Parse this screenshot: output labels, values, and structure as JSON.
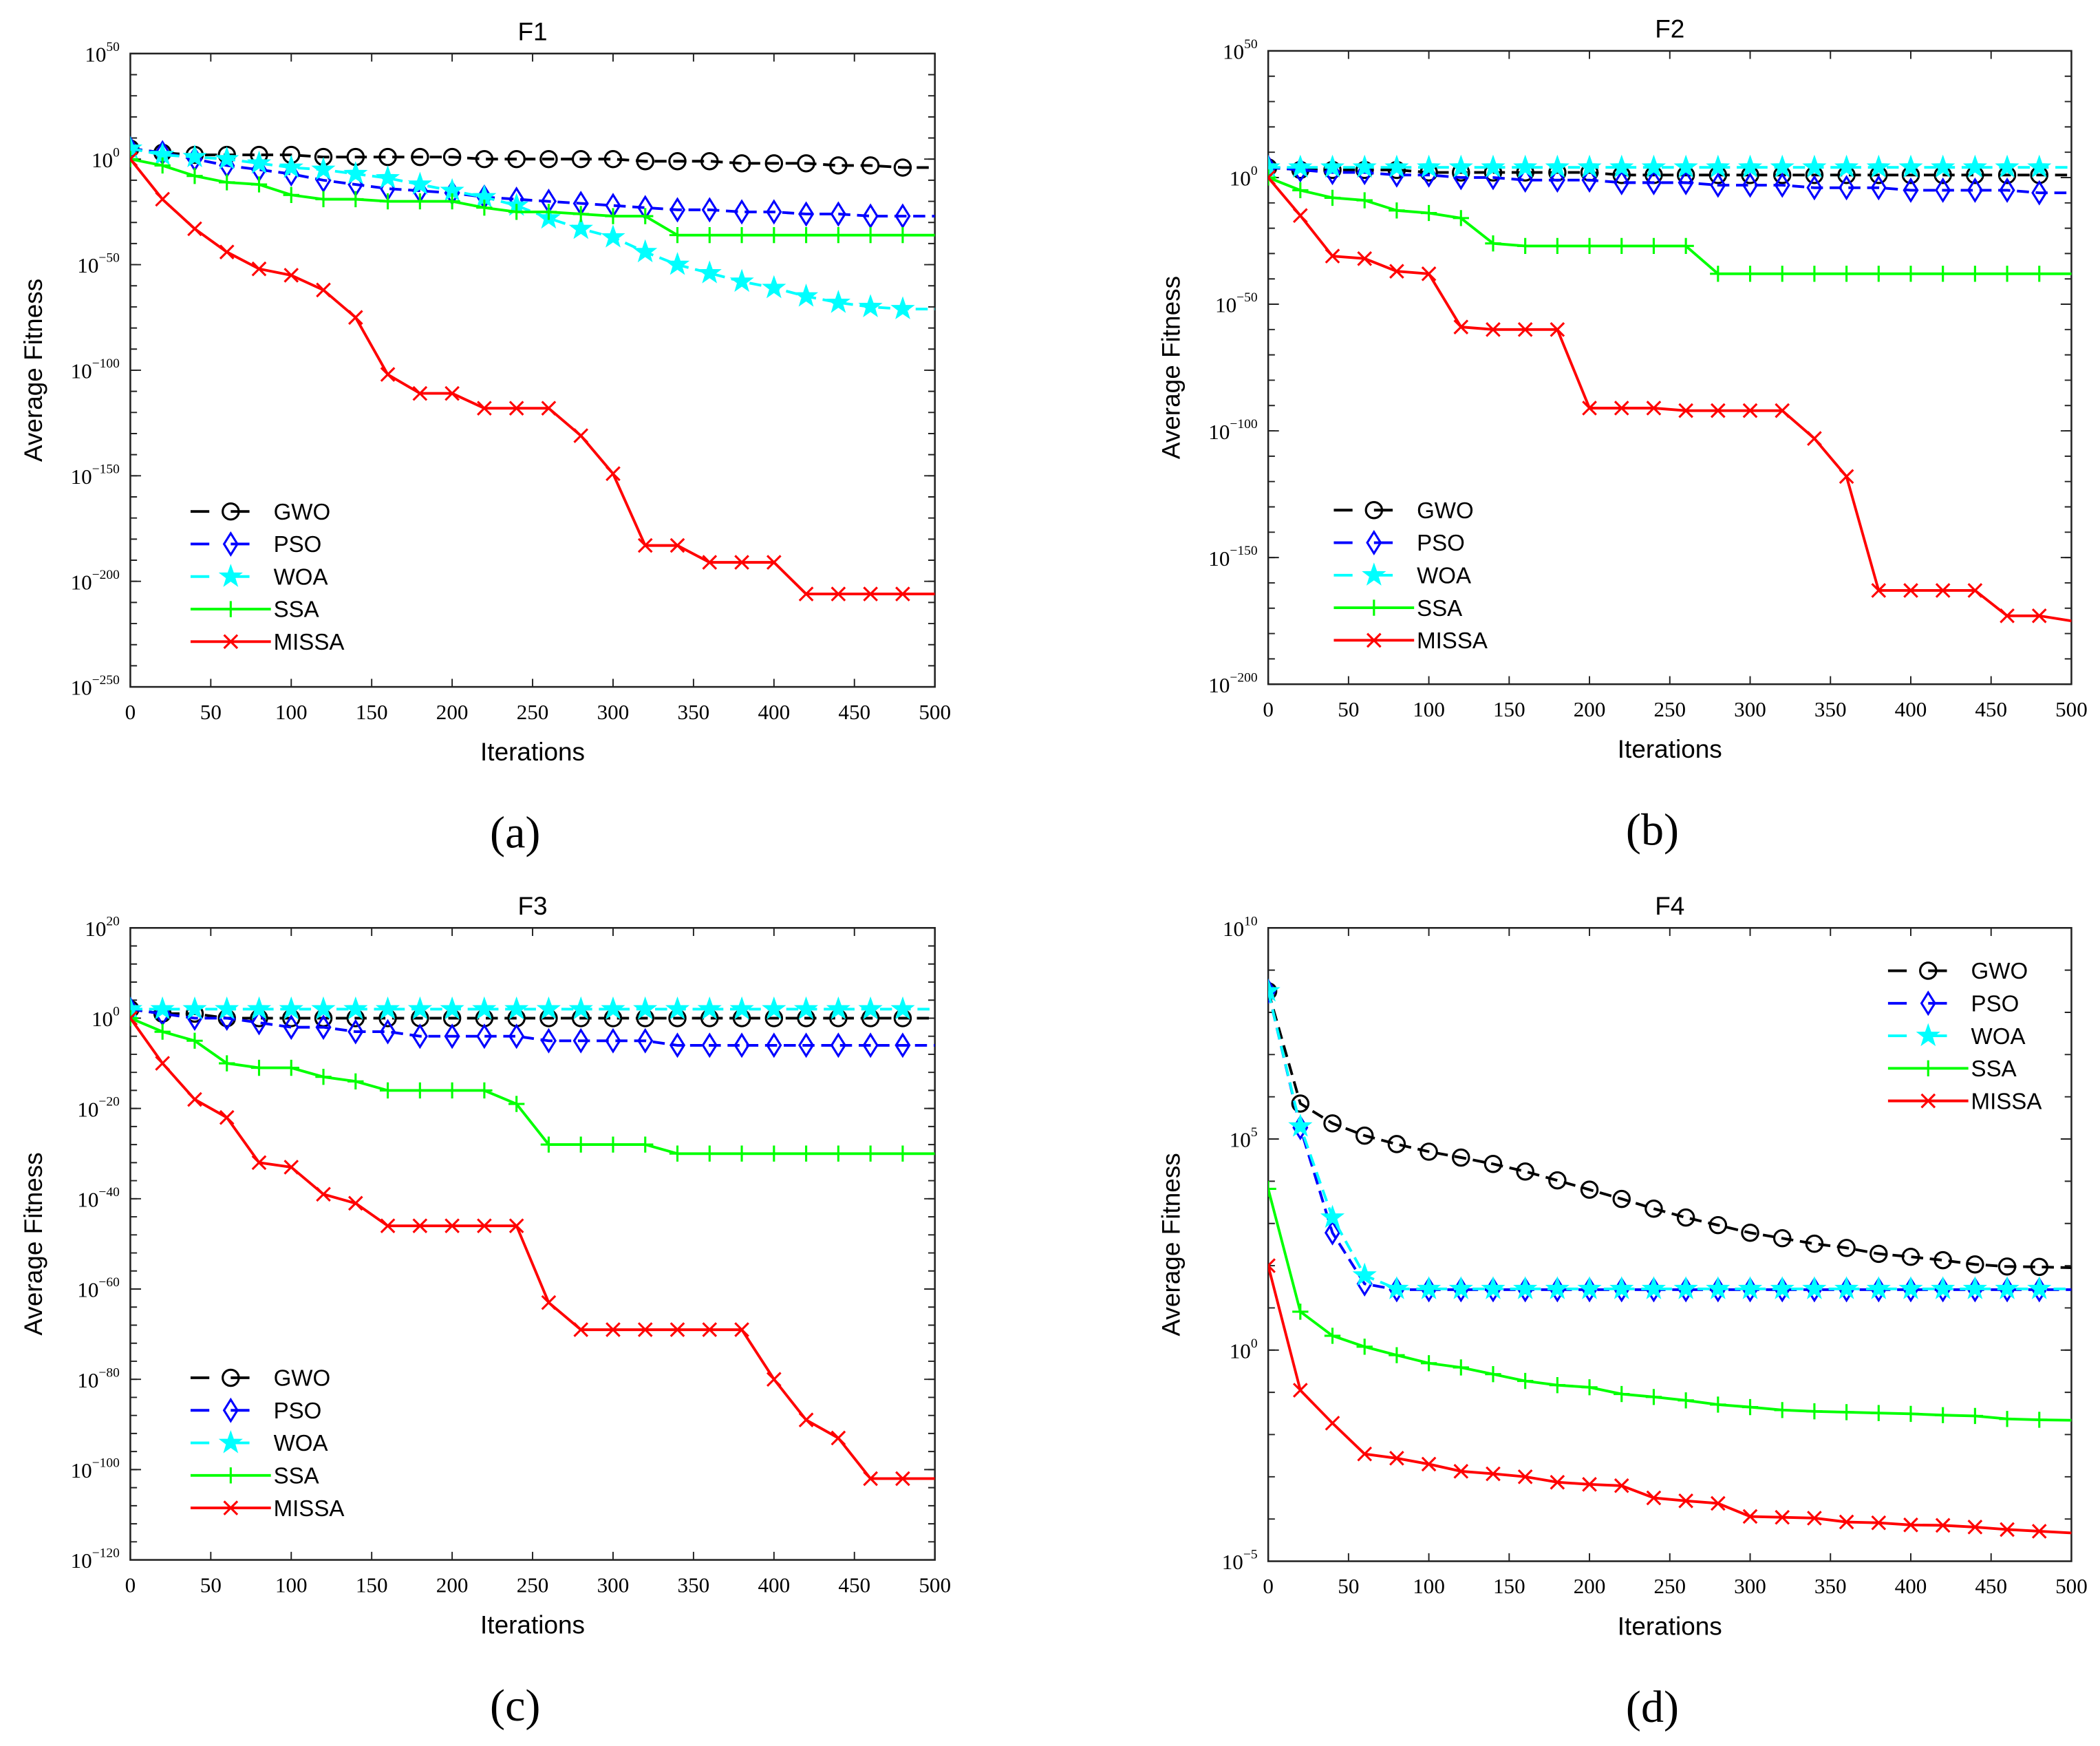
{
  "chart_data": [
    {
      "type": "line",
      "panel_caption": "(a)",
      "title": "F1",
      "xlabel": "Iterations",
      "ylabel": "Average Fitness",
      "yscale": "log10",
      "xlim": [
        0,
        500
      ],
      "ylim_exponent": [
        -250,
        50
      ],
      "x_ticks": [
        "0",
        "50",
        "100",
        "150",
        "200",
        "250",
        "300",
        "350",
        "400",
        "450",
        "500"
      ],
      "y_tick_exponents": [
        "50",
        "0",
        "−50",
        "−100",
        "−150",
        "−200",
        "−250"
      ],
      "legend_position": "lower-left",
      "x": [
        0,
        20,
        40,
        60,
        80,
        100,
        120,
        140,
        160,
        180,
        200,
        220,
        240,
        260,
        280,
        300,
        320,
        340,
        360,
        380,
        400,
        420,
        440,
        460,
        480,
        500
      ],
      "series_log10": [
        {
          "name": "GWO",
          "values": [
            5,
            3,
            2,
            2,
            2,
            2,
            1,
            1,
            1,
            1,
            1,
            0,
            0,
            0,
            0,
            0,
            -1,
            -1,
            -1,
            -2,
            -2,
            -2,
            -3,
            -3,
            -4,
            -4
          ]
        },
        {
          "name": "PSO",
          "values": [
            5,
            3,
            0,
            -3,
            -5,
            -7,
            -10,
            -12,
            -14,
            -15,
            -16,
            -18,
            -19,
            -20,
            -21,
            -22,
            -23,
            -24,
            -24,
            -25,
            -25,
            -26,
            -26,
            -27,
            -27,
            -27
          ]
        },
        {
          "name": "WOA",
          "values": [
            5,
            2,
            1,
            0,
            -2,
            -4,
            -5,
            -7,
            -9,
            -12,
            -15,
            -18,
            -22,
            -28,
            -33,
            -37,
            -44,
            -50,
            -54,
            -58,
            -61,
            -65,
            -68,
            -70,
            -71,
            -71
          ]
        },
        {
          "name": "SSA",
          "values": [
            0,
            -3,
            -8,
            -11,
            -12,
            -17,
            -19,
            -19,
            -20,
            -20,
            -20,
            -23,
            -25,
            -25,
            -26,
            -27,
            -27,
            -36,
            -36,
            -36,
            -36,
            -36,
            -36,
            -36,
            -36,
            -36
          ]
        },
        {
          "name": "MISSA",
          "values": [
            0,
            -19,
            -33,
            -44,
            -52,
            -55,
            -62,
            -75,
            -102,
            -111,
            -111,
            -118,
            -118,
            -118,
            -131,
            -149,
            -183,
            -183,
            -191,
            -191,
            -191,
            -206,
            -206,
            -206,
            -206,
            -206
          ]
        }
      ]
    },
    {
      "type": "line",
      "panel_caption": "(b)",
      "title": "F2",
      "xlabel": "Iterations",
      "ylabel": "Average Fitness",
      "yscale": "log10",
      "xlim": [
        0,
        500
      ],
      "ylim_exponent": [
        -200,
        50
      ],
      "x_ticks": [
        "0",
        "50",
        "100",
        "150",
        "200",
        "250",
        "300",
        "350",
        "400",
        "450",
        "500"
      ],
      "y_tick_exponents": [
        "50",
        "0",
        "−50",
        "−100",
        "−150",
        "−200"
      ],
      "legend_position": "lower-left",
      "x": [
        0,
        20,
        40,
        60,
        80,
        100,
        120,
        140,
        160,
        180,
        200,
        220,
        240,
        260,
        280,
        300,
        320,
        340,
        360,
        380,
        400,
        420,
        440,
        460,
        480,
        500
      ],
      "series_log10": [
        {
          "name": "GWO",
          "values": [
            4,
            3,
            3,
            3,
            3,
            2,
            2,
            2,
            2,
            2,
            2,
            1,
            1,
            1,
            1,
            1,
            1,
            1,
            1,
            1,
            1,
            1,
            1,
            1,
            1,
            1
          ]
        },
        {
          "name": "PSO",
          "values": [
            4,
            3,
            2,
            2,
            1,
            1,
            0,
            0,
            -1,
            -1,
            -1,
            -2,
            -2,
            -2,
            -3,
            -3,
            -3,
            -4,
            -4,
            -4,
            -5,
            -5,
            -5,
            -5,
            -6,
            -6
          ]
        },
        {
          "name": "WOA",
          "values": [
            4,
            4,
            4,
            4,
            4,
            4,
            4,
            4,
            4,
            4,
            4,
            4,
            4,
            4,
            4,
            4,
            4,
            4,
            4,
            4,
            4,
            4,
            4,
            4,
            4,
            4
          ]
        },
        {
          "name": "SSA",
          "values": [
            0,
            -5,
            -8,
            -9,
            -13,
            -14,
            -16,
            -26,
            -27,
            -27,
            -27,
            -27,
            -27,
            -27,
            -38,
            -38,
            -38,
            -38,
            -38,
            -38,
            -38,
            -38,
            -38,
            -38,
            -38,
            -38
          ]
        },
        {
          "name": "MISSA",
          "values": [
            0,
            -15,
            -31,
            -32,
            -37,
            -38,
            -59,
            -60,
            -60,
            -60,
            -91,
            -91,
            -91,
            -92,
            -92,
            -92,
            -92,
            -103,
            -118,
            -163,
            -163,
            -163,
            -163,
            -173,
            -173,
            -175
          ]
        }
      ]
    },
    {
      "type": "line",
      "panel_caption": "(c)",
      "title": "F3",
      "xlabel": "Iterations",
      "ylabel": "Average Fitness",
      "yscale": "log10",
      "xlim": [
        0,
        500
      ],
      "ylim_exponent": [
        -120,
        20
      ],
      "x_ticks": [
        "0",
        "50",
        "100",
        "150",
        "200",
        "250",
        "300",
        "350",
        "400",
        "450",
        "500"
      ],
      "y_tick_exponents": [
        "20",
        "0",
        "−20",
        "−40",
        "−60",
        "−80",
        "−100",
        "−120"
      ],
      "legend_position": "lower-left",
      "x": [
        0,
        20,
        40,
        60,
        80,
        100,
        120,
        140,
        160,
        180,
        200,
        220,
        240,
        260,
        280,
        300,
        320,
        340,
        360,
        380,
        400,
        420,
        440,
        460,
        480,
        500
      ],
      "series_log10": [
        {
          "name": "GWO",
          "values": [
            2,
            1,
            1,
            0,
            0,
            0,
            0,
            0,
            0,
            0,
            0,
            0,
            0,
            0,
            0,
            0,
            0,
            0,
            0,
            0,
            0,
            0,
            0,
            0,
            0,
            0
          ]
        },
        {
          "name": "PSO",
          "values": [
            2,
            1,
            0,
            0,
            -1,
            -2,
            -2,
            -3,
            -3,
            -4,
            -4,
            -4,
            -4,
            -5,
            -5,
            -5,
            -5,
            -6,
            -6,
            -6,
            -6,
            -6,
            -6,
            -6,
            -6,
            -6
          ]
        },
        {
          "name": "WOA",
          "values": [
            2,
            2,
            2,
            2,
            2,
            2,
            2,
            2,
            2,
            2,
            2,
            2,
            2,
            2,
            2,
            2,
            2,
            2,
            2,
            2,
            2,
            2,
            2,
            2,
            2,
            2
          ]
        },
        {
          "name": "SSA",
          "values": [
            0,
            -3,
            -5,
            -10,
            -11,
            -11,
            -13,
            -14,
            -16,
            -16,
            -16,
            -16,
            -19,
            -28,
            -28,
            -28,
            -28,
            -30,
            -30,
            -30,
            -30,
            -30,
            -30,
            -30,
            -30,
            -30
          ]
        },
        {
          "name": "MISSA",
          "values": [
            0,
            -10,
            -18,
            -22,
            -32,
            -33,
            -39,
            -41,
            -46,
            -46,
            -46,
            -46,
            -46,
            -63,
            -69,
            -69,
            -69,
            -69,
            -69,
            -69,
            -80,
            -89,
            -93,
            -102,
            -102,
            -102
          ]
        }
      ]
    },
    {
      "type": "line",
      "panel_caption": "(d)",
      "title": "F4",
      "xlabel": "Iterations",
      "ylabel": "Average Fitness",
      "yscale": "log10",
      "xlim": [
        0,
        500
      ],
      "ylim_exponent": [
        -5,
        10
      ],
      "x_ticks": [
        "0",
        "50",
        "100",
        "150",
        "200",
        "250",
        "300",
        "350",
        "400",
        "450",
        "500"
      ],
      "y_tick_exponents": [
        "10",
        "5",
        "0",
        "−5"
      ],
      "legend_position": "top-right",
      "x": [
        0,
        20,
        40,
        60,
        80,
        100,
        120,
        140,
        160,
        180,
        200,
        220,
        240,
        260,
        280,
        300,
        320,
        340,
        360,
        380,
        400,
        420,
        440,
        460,
        480,
        500
      ],
      "series_log10": [
        {
          "name": "GWO",
          "values": [
            8.5,
            5.84,
            5.37,
            5.08,
            4.88,
            4.7,
            4.56,
            4.41,
            4.23,
            4.02,
            3.8,
            3.58,
            3.35,
            3.14,
            2.96,
            2.78,
            2.65,
            2.52,
            2.42,
            2.28,
            2.21,
            2.13,
            2.03,
            1.98,
            1.97,
            1.95
          ]
        },
        {
          "name": "PSO",
          "values": [
            8.5,
            5.27,
            2.78,
            1.57,
            1.43,
            1.43,
            1.43,
            1.43,
            1.43,
            1.43,
            1.43,
            1.43,
            1.43,
            1.43,
            1.43,
            1.43,
            1.43,
            1.43,
            1.43,
            1.43,
            1.43,
            1.43,
            1.43,
            1.43,
            1.43,
            1.43
          ]
        },
        {
          "name": "WOA",
          "values": [
            8.5,
            5.3,
            3.14,
            1.77,
            1.45,
            1.45,
            1.45,
            1.45,
            1.45,
            1.45,
            1.45,
            1.45,
            1.45,
            1.45,
            1.45,
            1.45,
            1.45,
            1.45,
            1.45,
            1.45,
            1.45,
            1.45,
            1.45,
            1.45,
            1.45,
            1.45
          ]
        },
        {
          "name": "SSA",
          "values": [
            3.82,
            0.91,
            0.34,
            0.08,
            -0.12,
            -0.31,
            -0.41,
            -0.57,
            -0.73,
            -0.83,
            -0.88,
            -1.04,
            -1.11,
            -1.19,
            -1.29,
            -1.35,
            -1.42,
            -1.45,
            -1.47,
            -1.49,
            -1.51,
            -1.54,
            -1.56,
            -1.63,
            -1.65,
            -1.66
          ]
        },
        {
          "name": "MISSA",
          "values": [
            2.0,
            -0.95,
            -1.73,
            -2.46,
            -2.56,
            -2.7,
            -2.87,
            -2.93,
            -3.0,
            -3.13,
            -3.18,
            -3.21,
            -3.5,
            -3.57,
            -3.63,
            -3.94,
            -3.96,
            -3.98,
            -4.07,
            -4.09,
            -4.14,
            -4.15,
            -4.19,
            -4.25,
            -4.29,
            -4.33
          ]
        }
      ]
    }
  ],
  "series_styles": {
    "GWO": {
      "color": "#000000",
      "dashed": true,
      "marker": "circle"
    },
    "PSO": {
      "color": "#0000ff",
      "dashed": true,
      "marker": "diamond"
    },
    "WOA": {
      "color": "#00ffff",
      "dashed": true,
      "marker": "star"
    },
    "SSA": {
      "color": "#00ff00",
      "dashed": false,
      "marker": "plus"
    },
    "MISSA": {
      "color": "#ff0000",
      "dashed": false,
      "marker": "x"
    }
  },
  "tick_base": "10"
}
